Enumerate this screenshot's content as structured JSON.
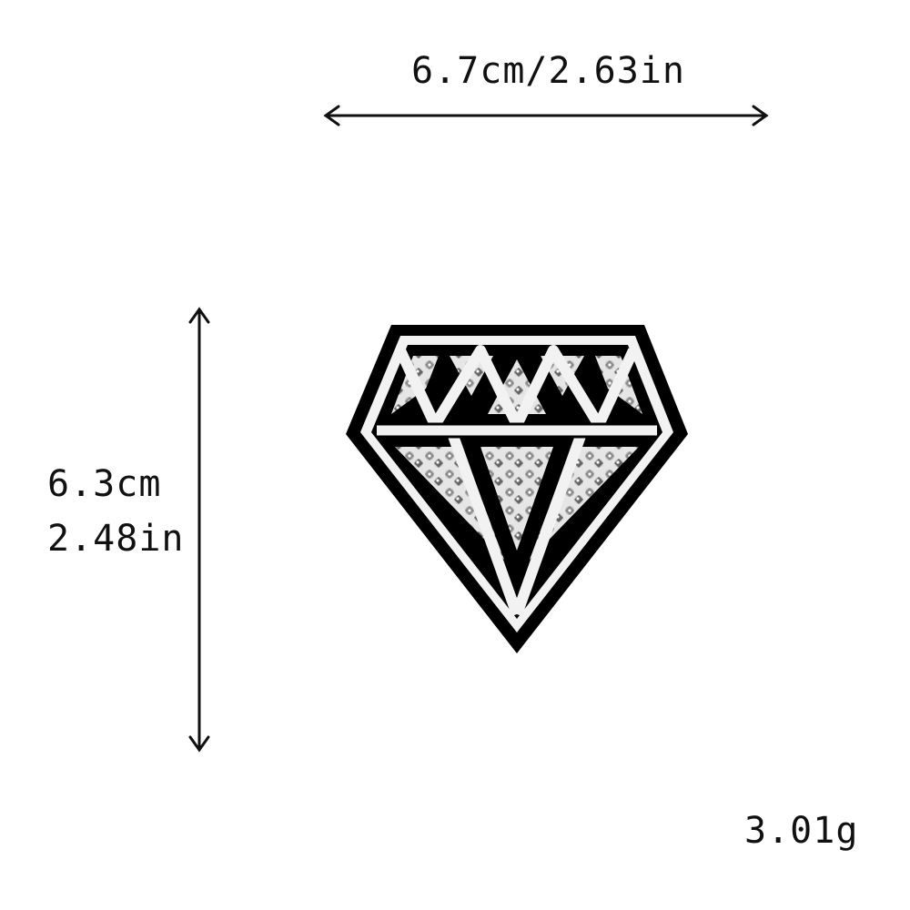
{
  "dimensions": {
    "width_label": "6.7cm/2.63in",
    "height_cm_label": "6.3cm",
    "height_in_label": "2.48in"
  },
  "weight_label": "3.01g",
  "colors": {
    "outline": "#000000",
    "stitch": "#f2f2f2",
    "crystal_base": "#d9d9d9",
    "crystal_dark": "#5a5a5a",
    "arrow": "#111111"
  },
  "icons": {
    "horizontal_arrow": "double-headed-arrow-horizontal",
    "vertical_arrow": "double-headed-arrow-vertical",
    "product": "diamond-shaped-rhinestone-patch"
  }
}
